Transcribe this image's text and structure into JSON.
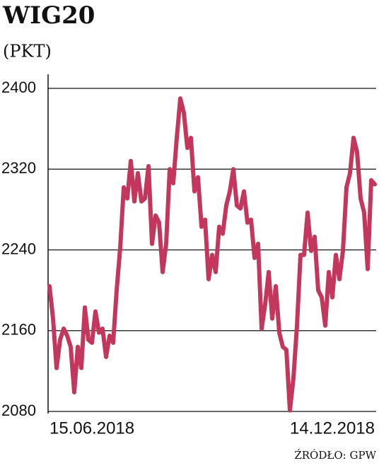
{
  "chart_data": {
    "type": "line",
    "title": "WIG20",
    "subtitle": "(PKT)",
    "source": "ŹRÓDŁO: GPW",
    "categories": [
      "15.06.2018",
      null,
      null,
      null,
      null,
      null,
      null,
      null,
      null,
      null,
      null,
      null,
      null,
      null,
      null,
      null,
      null,
      null,
      null,
      null,
      null,
      null,
      null,
      null,
      null,
      null,
      null,
      null,
      null,
      null,
      null,
      null,
      null,
      null,
      null,
      null,
      null,
      null,
      null,
      null,
      null,
      null,
      null,
      null,
      null,
      null,
      null,
      null,
      null,
      null,
      null,
      null,
      null,
      null,
      null,
      null,
      null,
      null,
      null,
      null,
      null,
      null,
      null,
      null,
      null,
      null,
      null,
      null,
      null,
      null,
      null,
      null,
      null,
      null,
      null,
      null,
      null,
      null,
      null,
      null,
      null,
      null,
      null,
      null,
      null,
      null,
      null,
      null,
      null,
      null,
      null,
      null,
      "14.12.2018"
    ],
    "values": [
      2204,
      2172,
      2123,
      2151,
      2162,
      2155,
      2144,
      2099,
      2144,
      2123,
      2183,
      2151,
      2148,
      2179,
      2158,
      2162,
      2134,
      2155,
      2148,
      2200,
      2242,
      2302,
      2291,
      2328,
      2288,
      2316,
      2288,
      2291,
      2323,
      2246,
      2274,
      2267,
      2218,
      2246,
      2320,
      2306,
      2351,
      2390,
      2376,
      2341,
      2351,
      2298,
      2312,
      2263,
      2270,
      2211,
      2235,
      2218,
      2263,
      2256,
      2284,
      2298,
      2320,
      2284,
      2281,
      2298,
      2267,
      2270,
      2232,
      2246,
      2162,
      2186,
      2218,
      2172,
      2204,
      2158,
      2144,
      2141,
      2081,
      2113,
      2165,
      2235,
      2235,
      2277,
      2239,
      2253,
      2200,
      2193,
      2165,
      2218,
      2193,
      2235,
      2211,
      2239,
      2302,
      2316,
      2351,
      2337,
      2291,
      2277,
      2221,
      2309,
      2305
    ],
    "color": "#c2375b",
    "ylim": [
      2080,
      2400
    ],
    "yticks": [
      2080,
      2160,
      2240,
      2320,
      2400
    ],
    "grid": true
  }
}
